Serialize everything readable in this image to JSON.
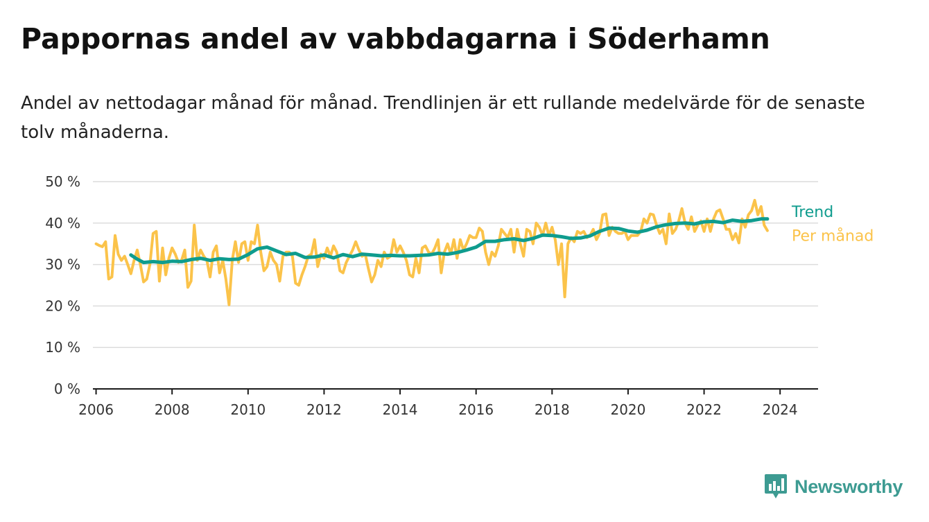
{
  "title": "Pappornas andel av vabbdagarna i Söderhamn",
  "subtitle": "Andel av nettodagar månad för månad. Trendlinjen är ett rullande medelvärde för de senaste tolv månaderna.",
  "brand": {
    "name": "Newsworthy",
    "icon": "newsworthy-logo-icon",
    "color": "#3d9b92"
  },
  "colors": {
    "monthly": "#fbc34a",
    "trend": "#0f9c8e",
    "grid": "#dcdcdc",
    "axis": "#1a1a1a",
    "text": "#333333"
  },
  "chart_data": {
    "type": "line",
    "x_type": "date",
    "xlim": [
      "2005-12",
      "2025-01"
    ],
    "x_ticks": [
      "2006",
      "2008",
      "2010",
      "2012",
      "2014",
      "2016",
      "2018",
      "2020",
      "2022",
      "2024"
    ],
    "y_ticks": [
      "0 %",
      "10 %",
      "20 %",
      "30 %",
      "40 %",
      "50 %"
    ],
    "ylim": [
      0,
      50
    ],
    "grid": true,
    "legend": "direct labels at line ends, right",
    "series": [
      {
        "name": "Per månad",
        "color": "#fbc34a",
        "points": [
          [
            "2006-01",
            35
          ],
          [
            "2006-02",
            34.6
          ],
          [
            "2006-03",
            34.3
          ],
          [
            "2006-04",
            35.5
          ],
          [
            "2006-05",
            26.5
          ],
          [
            "2006-06",
            27
          ],
          [
            "2006-07",
            37
          ],
          [
            "2006-08",
            32.5
          ],
          [
            "2006-09",
            31
          ],
          [
            "2006-10",
            32
          ],
          [
            "2006-11",
            30
          ],
          [
            "2006-12",
            27.8
          ],
          [
            "2007-01",
            31
          ],
          [
            "2007-02",
            33.5
          ],
          [
            "2007-03",
            30
          ],
          [
            "2007-04",
            25.8
          ],
          [
            "2007-05",
            26.5
          ],
          [
            "2007-06",
            30
          ],
          [
            "2007-07",
            37.5
          ],
          [
            "2007-08",
            38
          ],
          [
            "2007-09",
            26
          ],
          [
            "2007-10",
            34
          ],
          [
            "2007-11",
            27.5
          ],
          [
            "2007-12",
            31.5
          ],
          [
            "2008-01",
            34
          ],
          [
            "2008-02",
            32.5
          ],
          [
            "2008-03",
            30.5
          ],
          [
            "2008-04",
            31
          ],
          [
            "2008-05",
            33.5
          ],
          [
            "2008-06",
            24.5
          ],
          [
            "2008-07",
            26
          ],
          [
            "2008-08",
            39.5
          ],
          [
            "2008-09",
            31
          ],
          [
            "2008-10",
            33.5
          ],
          [
            "2008-11",
            32
          ],
          [
            "2008-12",
            31
          ],
          [
            "2009-01",
            27
          ],
          [
            "2009-02",
            33
          ],
          [
            "2009-03",
            34.5
          ],
          [
            "2009-04",
            28
          ],
          [
            "2009-05",
            31
          ],
          [
            "2009-06",
            26.5
          ],
          [
            "2009-07",
            20.3
          ],
          [
            "2009-08",
            31
          ],
          [
            "2009-09",
            35.5
          ],
          [
            "2009-10",
            30.5
          ],
          [
            "2009-11",
            35
          ],
          [
            "2009-12",
            35.5
          ],
          [
            "2010-01",
            31
          ],
          [
            "2010-02",
            35.5
          ],
          [
            "2010-03",
            35
          ],
          [
            "2010-04",
            39.5
          ],
          [
            "2010-05",
            33
          ],
          [
            "2010-06",
            28.5
          ],
          [
            "2010-07",
            29.5
          ],
          [
            "2010-08",
            33
          ],
          [
            "2010-09",
            31
          ],
          [
            "2010-10",
            30
          ],
          [
            "2010-11",
            26
          ],
          [
            "2010-12",
            32
          ],
          [
            "2011-01",
            33
          ],
          [
            "2011-02",
            33
          ],
          [
            "2011-03",
            32
          ],
          [
            "2011-04",
            25.5
          ],
          [
            "2011-05",
            25
          ],
          [
            "2011-06",
            27.5
          ],
          [
            "2011-07",
            29.5
          ],
          [
            "2011-08",
            32
          ],
          [
            "2011-09",
            32.5
          ],
          [
            "2011-10",
            36
          ],
          [
            "2011-11",
            29.5
          ],
          [
            "2011-12",
            32.5
          ],
          [
            "2012-01",
            31.5
          ],
          [
            "2012-02",
            34
          ],
          [
            "2012-03",
            32
          ],
          [
            "2012-04",
            34.5
          ],
          [
            "2012-05",
            33
          ],
          [
            "2012-06",
            28.5
          ],
          [
            "2012-07",
            28
          ],
          [
            "2012-08",
            30.5
          ],
          [
            "2012-09",
            32
          ],
          [
            "2012-10",
            33.5
          ],
          [
            "2012-11",
            35.5
          ],
          [
            "2012-12",
            33.5
          ],
          [
            "2013-01",
            32
          ],
          [
            "2013-02",
            32.5
          ],
          [
            "2013-03",
            29
          ],
          [
            "2013-04",
            25.8
          ],
          [
            "2013-05",
            27.5
          ],
          [
            "2013-06",
            31
          ],
          [
            "2013-07",
            29.5
          ],
          [
            "2013-08",
            33
          ],
          [
            "2013-09",
            31.5
          ],
          [
            "2013-10",
            32
          ],
          [
            "2013-11",
            36
          ],
          [
            "2013-12",
            33
          ],
          [
            "2014-01",
            34.5
          ],
          [
            "2014-02",
            33
          ],
          [
            "2014-03",
            31
          ],
          [
            "2014-04",
            27.5
          ],
          [
            "2014-05",
            27
          ],
          [
            "2014-06",
            31.5
          ],
          [
            "2014-07",
            28
          ],
          [
            "2014-08",
            34
          ],
          [
            "2014-09",
            34.5
          ],
          [
            "2014-10",
            33
          ],
          [
            "2014-11",
            32.5
          ],
          [
            "2014-12",
            34
          ],
          [
            "2015-01",
            36
          ],
          [
            "2015-02",
            28
          ],
          [
            "2015-03",
            33
          ],
          [
            "2015-04",
            35
          ],
          [
            "2015-05",
            32.5
          ],
          [
            "2015-06",
            36
          ],
          [
            "2015-07",
            31.5
          ],
          [
            "2015-08",
            36
          ],
          [
            "2015-09",
            33.5
          ],
          [
            "2015-10",
            35
          ],
          [
            "2015-11",
            37
          ],
          [
            "2015-12",
            36.5
          ],
          [
            "2016-01",
            36.5
          ],
          [
            "2016-02",
            38.8
          ],
          [
            "2016-03",
            38
          ],
          [
            "2016-04",
            33
          ],
          [
            "2016-05",
            30
          ],
          [
            "2016-06",
            33
          ],
          [
            "2016-07",
            32
          ],
          [
            "2016-08",
            34.5
          ],
          [
            "2016-09",
            38.5
          ],
          [
            "2016-10",
            37.5
          ],
          [
            "2016-11",
            36.5
          ],
          [
            "2016-12",
            38.5
          ],
          [
            "2017-01",
            33
          ],
          [
            "2017-02",
            38.5
          ],
          [
            "2017-03",
            35
          ],
          [
            "2017-04",
            32
          ],
          [
            "2017-05",
            38.5
          ],
          [
            "2017-06",
            38
          ],
          [
            "2017-07",
            35
          ],
          [
            "2017-08",
            40
          ],
          [
            "2017-09",
            39
          ],
          [
            "2017-10",
            37
          ],
          [
            "2017-11",
            40
          ],
          [
            "2017-12",
            37
          ],
          [
            "2018-01",
            39
          ],
          [
            "2018-02",
            36
          ],
          [
            "2018-03",
            30
          ],
          [
            "2018-04",
            35
          ],
          [
            "2018-05",
            22.2
          ],
          [
            "2018-06",
            35
          ],
          [
            "2018-07",
            36.5
          ],
          [
            "2018-08",
            35.5
          ],
          [
            "2018-09",
            38
          ],
          [
            "2018-10",
            37.5
          ],
          [
            "2018-11",
            38
          ],
          [
            "2018-12",
            36.5
          ],
          [
            "2019-01",
            37
          ],
          [
            "2019-02",
            38.5
          ],
          [
            "2019-03",
            36
          ],
          [
            "2019-04",
            37.5
          ],
          [
            "2019-05",
            42
          ],
          [
            "2019-06",
            42.2
          ],
          [
            "2019-07",
            37
          ],
          [
            "2019-08",
            39
          ],
          [
            "2019-09",
            38
          ],
          [
            "2019-10",
            37.5
          ],
          [
            "2019-11",
            37.5
          ],
          [
            "2019-12",
            38
          ],
          [
            "2020-01",
            36
          ],
          [
            "2020-02",
            37
          ],
          [
            "2020-03",
            37
          ],
          [
            "2020-04",
            37
          ],
          [
            "2020-05",
            38
          ],
          [
            "2020-06",
            41
          ],
          [
            "2020-07",
            40
          ],
          [
            "2020-08",
            42.2
          ],
          [
            "2020-09",
            42
          ],
          [
            "2020-10",
            39.5
          ],
          [
            "2020-11",
            37.5
          ],
          [
            "2020-12",
            38.5
          ],
          [
            "2021-01",
            35
          ],
          [
            "2021-02",
            42.2
          ],
          [
            "2021-03",
            37.5
          ],
          [
            "2021-04",
            38.5
          ],
          [
            "2021-05",
            40.5
          ],
          [
            "2021-06",
            43.5
          ],
          [
            "2021-07",
            40
          ],
          [
            "2021-08",
            38.5
          ],
          [
            "2021-09",
            41.5
          ],
          [
            "2021-10",
            38
          ],
          [
            "2021-11",
            39.5
          ],
          [
            "2021-12",
            40.5
          ],
          [
            "2022-01",
            38
          ],
          [
            "2022-02",
            41
          ],
          [
            "2022-03",
            38
          ],
          [
            "2022-04",
            41
          ],
          [
            "2022-05",
            42.8
          ],
          [
            "2022-06",
            43.2
          ],
          [
            "2022-07",
            41
          ],
          [
            "2022-08",
            38.5
          ],
          [
            "2022-09",
            38.5
          ],
          [
            "2022-10",
            36
          ],
          [
            "2022-11",
            37.5
          ],
          [
            "2022-12",
            35.2
          ],
          [
            "2023-01",
            41
          ],
          [
            "2023-02",
            39
          ],
          [
            "2023-03",
            42
          ],
          [
            "2023-04",
            43
          ],
          [
            "2023-05",
            45.5
          ],
          [
            "2023-06",
            42
          ],
          [
            "2023-07",
            44
          ],
          [
            "2023-08",
            39.5
          ],
          [
            "2023-09",
            38.2
          ]
        ]
      },
      {
        "name": "Trend",
        "color": "#0f9c8e",
        "points": [
          [
            "2006-12",
            32.3
          ],
          [
            "2007-02",
            31.3
          ],
          [
            "2007-04",
            30.5
          ],
          [
            "2007-07",
            30.7
          ],
          [
            "2007-10",
            30.5
          ],
          [
            "2008-01",
            30.8
          ],
          [
            "2008-04",
            30.7
          ],
          [
            "2008-07",
            31.2
          ],
          [
            "2008-10",
            31.5
          ],
          [
            "2009-01",
            31
          ],
          [
            "2009-04",
            31.4
          ],
          [
            "2009-07",
            31.2
          ],
          [
            "2009-10",
            31.3
          ],
          [
            "2010-01",
            32.4
          ],
          [
            "2010-04",
            33.8
          ],
          [
            "2010-07",
            34.2
          ],
          [
            "2010-10",
            33.3
          ],
          [
            "2011-01",
            32.4
          ],
          [
            "2011-04",
            32.7
          ],
          [
            "2011-07",
            31.7
          ],
          [
            "2011-10",
            31.8
          ],
          [
            "2012-01",
            32.3
          ],
          [
            "2012-04",
            31.6
          ],
          [
            "2012-07",
            32.4
          ],
          [
            "2012-10",
            31.9
          ],
          [
            "2013-01",
            32.5
          ],
          [
            "2013-04",
            32.3
          ],
          [
            "2013-07",
            32.1
          ],
          [
            "2013-10",
            32.2
          ],
          [
            "2014-01",
            32.1
          ],
          [
            "2014-04",
            32.1
          ],
          [
            "2014-07",
            32.2
          ],
          [
            "2014-10",
            32.3
          ],
          [
            "2015-01",
            32.7
          ],
          [
            "2015-04",
            32.5
          ],
          [
            "2015-07",
            32.9
          ],
          [
            "2015-10",
            33.5
          ],
          [
            "2016-01",
            34.2
          ],
          [
            "2016-04",
            35.6
          ],
          [
            "2016-07",
            35.6
          ],
          [
            "2016-10",
            36
          ],
          [
            "2017-01",
            36.2
          ],
          [
            "2017-04",
            35.8
          ],
          [
            "2017-07",
            36.3
          ],
          [
            "2017-10",
            37.1
          ],
          [
            "2018-01",
            37
          ],
          [
            "2018-04",
            36.7
          ],
          [
            "2018-07",
            36.3
          ],
          [
            "2018-10",
            36.4
          ],
          [
            "2019-01",
            36.9
          ],
          [
            "2019-04",
            38
          ],
          [
            "2019-07",
            38.8
          ],
          [
            "2019-10",
            38.7
          ],
          [
            "2020-01",
            38.1
          ],
          [
            "2020-04",
            37.8
          ],
          [
            "2020-07",
            38.3
          ],
          [
            "2020-10",
            39.1
          ],
          [
            "2021-01",
            39.6
          ],
          [
            "2021-04",
            39.9
          ],
          [
            "2021-07",
            40
          ],
          [
            "2021-10",
            39.8
          ],
          [
            "2022-01",
            40.3
          ],
          [
            "2022-04",
            40.4
          ],
          [
            "2022-07",
            40.1
          ],
          [
            "2022-10",
            40.7
          ],
          [
            "2023-01",
            40.4
          ],
          [
            "2023-04",
            40.6
          ],
          [
            "2023-07",
            41
          ],
          [
            "2023-09",
            41
          ]
        ]
      }
    ]
  }
}
